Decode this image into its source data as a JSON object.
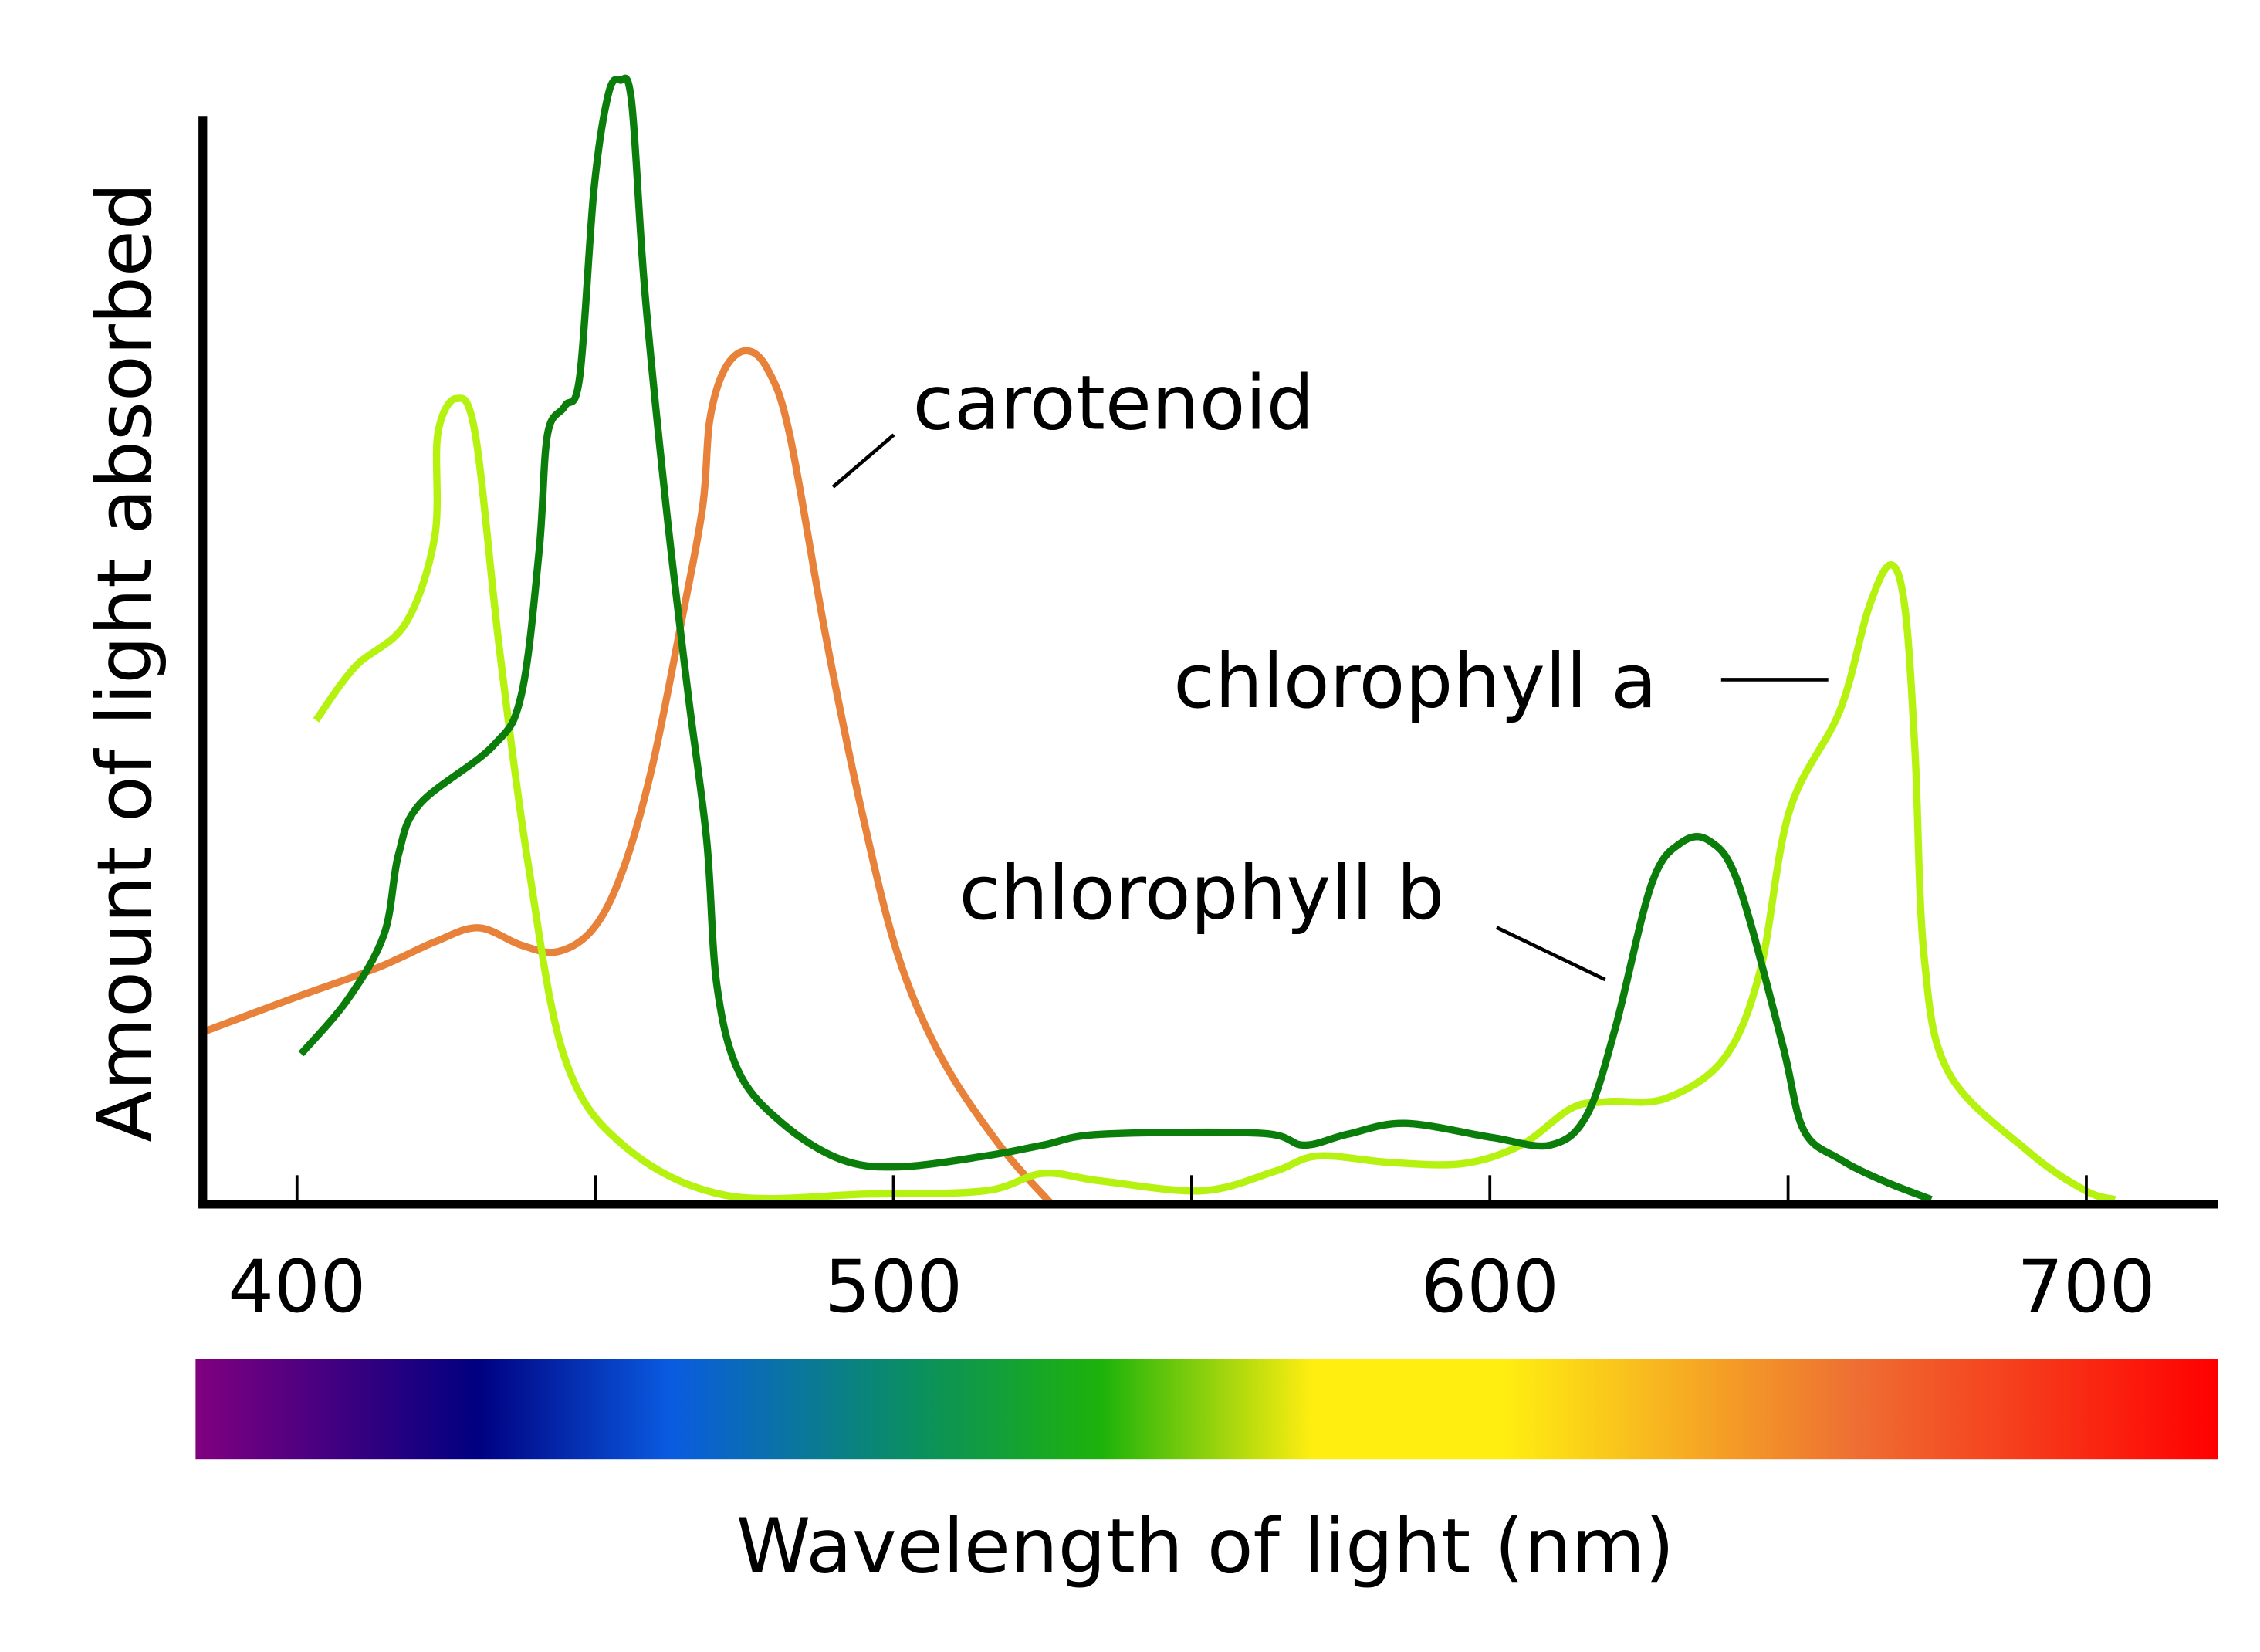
{
  "chart_data": {
    "type": "line",
    "xlabel": "Wavelength of light (nm)",
    "ylabel": "Amount of light absorbed",
    "xlim": [
      384,
      721
    ],
    "ylim": [
      0,
      100
    ],
    "x_ticks": [
      400,
      450,
      500,
      550,
      600,
      650,
      700
    ],
    "x_tick_labels": [
      "400",
      "500",
      "600",
      "700"
    ],
    "x_tick_label_values": [
      400,
      500,
      600,
      700
    ],
    "grid": false,
    "spectrum_bar": {
      "stops": [
        {
          "nm": 384,
          "color": "#800080"
        },
        {
          "nm": 431,
          "color": "#000080"
        },
        {
          "nm": 463,
          "color": "#0a5be0"
        },
        {
          "nm": 504,
          "color": "#0a8f60"
        },
        {
          "nm": 535,
          "color": "#1db30a"
        },
        {
          "nm": 570,
          "color": "#ffee10"
        },
        {
          "nm": 602,
          "color": "#ffee10"
        },
        {
          "nm": 660,
          "color": "#ee7033"
        },
        {
          "nm": 721,
          "color": "#ff0000"
        }
      ]
    },
    "series": [
      {
        "name": "chlorophyll a",
        "color": "#b5f20f",
        "x": [
          403.2,
          409.7,
          418.2,
          423.1,
          423.6,
          426.7,
          429.9,
          434,
          438.9,
          444.9,
          454.7,
          471.7,
          495.9,
          515.4,
          525.1,
          534.8,
          551.8,
          564,
          571.2,
          583.4,
          595.5,
          605.2,
          613.7,
          619.8,
          629.5,
          639.3,
          645.3,
          650.2,
          658.7,
          663.5,
          667.2,
          669.6,
          671.3,
          672.8,
          676.9,
          690.3,
          699.9,
          704.8
        ],
        "y": [
          44.4,
          49.3,
          53.3,
          61.3,
          70.7,
          74,
          70.7,
          50.7,
          30.7,
          13.3,
          5.3,
          0.7,
          0.8,
          1.1,
          2.7,
          2,
          1.1,
          2.9,
          4.3,
          3.7,
          3.6,
          5.3,
          8.7,
          9.3,
          9.6,
          13.3,
          21.3,
          36,
          45.3,
          54.7,
          58.7,
          54.7,
          41.3,
          22.7,
          12,
          4.7,
          1.1,
          0.3
        ]
      },
      {
        "name": "chlorophyll b",
        "color": "#0b7d0b",
        "x": [
          400.7,
          408.5,
          414.6,
          417,
          420.6,
          432.8,
          437.6,
          440.6,
          442,
          444.9,
          447.4,
          449.8,
          452.2,
          454.2,
          456.1,
          458.3,
          461.9,
          465.6,
          468.7,
          470.4,
          474.1,
          481.4,
          491.1,
          500.8,
          515.4,
          525.1,
          534.8,
          561.5,
          568.8,
          576.1,
          585.8,
          600.4,
          610.1,
          616.2,
          621,
          627.1,
          632,
          636.8,
          641.7,
          649,
          652.6,
          658.7,
          666,
          674
        ],
        "y": [
          13.7,
          18.7,
          24.7,
          32,
          36.7,
          42,
          46.7,
          60,
          70.7,
          73.3,
          76,
          93.3,
          102,
          103.3,
          101.3,
          84,
          64,
          46.7,
          33.3,
          20,
          12,
          7.3,
          4,
          3.3,
          4.3,
          5.3,
          6.3,
          6.4,
          5.3,
          6.3,
          7.3,
          6,
          5.3,
          8,
          16,
          29.3,
          33.1,
          33.3,
          29.3,
          14.7,
          6.7,
          4,
          2,
          0.3
        ]
      },
      {
        "name": "carotenoid",
        "color": "#e8823a",
        "x": [
          384.2,
          398.8,
          413.4,
          423.1,
          430.4,
          437.6,
          443.7,
          449.8,
          454.7,
          459.5,
          464.4,
          468,
          469.2,
          471.7,
          475.3,
          478.9,
          482.6,
          488.7,
          494.7,
          500.8,
          508.1,
          517.8,
          526.3
        ],
        "y": [
          15.7,
          18.7,
          21.6,
          24,
          25.3,
          23.7,
          23.1,
          25.3,
          30.7,
          40,
          53.3,
          64,
          72,
          76.7,
          78.4,
          76.7,
          70.7,
          52,
          36,
          22.7,
          13.3,
          5.3,
          0
        ]
      }
    ],
    "annotations": [
      "carotenoid",
      "chlorophyll a",
      "chlorophyll b"
    ]
  }
}
